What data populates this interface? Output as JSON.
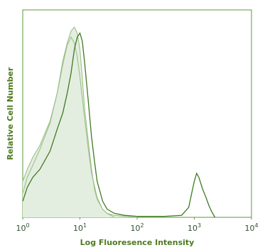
{
  "chart_data": {
    "type": "area",
    "xscale": "log",
    "xlim": [
      1,
      10000
    ],
    "ylim": [
      0,
      1
    ],
    "xlabel": "Log Fluoresence Intensity",
    "ylabel": "Relative Cell Number",
    "xticks": [
      {
        "base": "10",
        "exp": "0",
        "value": 1
      },
      {
        "base": "10",
        "exp": "1",
        "value": 10
      },
      {
        "base": "10",
        "exp": "2",
        "value": 100
      },
      {
        "base": "10",
        "exp": "3",
        "value": 1000
      },
      {
        "base": "10",
        "exp": "4",
        "value": 10000
      }
    ],
    "colors": {
      "frame": "#5a9a3a",
      "filled_series_line": "#9dbf8a",
      "filled_series_fill": "#e4eee0",
      "stained_series_line": "#3f7a22",
      "axis_text": "#2f4f2f",
      "title_text": "#4d7a1e"
    },
    "series": [
      {
        "role": "filled-control",
        "points": [
          [
            1.0,
            0.18
          ],
          [
            1.2,
            0.24
          ],
          [
            1.5,
            0.3
          ],
          [
            2.0,
            0.36
          ],
          [
            3.0,
            0.48
          ],
          [
            4.0,
            0.62
          ],
          [
            5.0,
            0.78
          ],
          [
            6.0,
            0.87
          ],
          [
            7.0,
            0.93
          ],
          [
            8.0,
            0.95
          ],
          [
            9.0,
            0.92
          ],
          [
            10.0,
            0.84
          ],
          [
            11.0,
            0.7
          ],
          [
            12.0,
            0.55
          ],
          [
            14.0,
            0.38
          ],
          [
            16.0,
            0.24
          ],
          [
            18.0,
            0.14
          ],
          [
            20.0,
            0.09
          ],
          [
            25.0,
            0.04
          ],
          [
            30.0,
            0.02
          ],
          [
            40.0,
            0.01
          ],
          [
            60.0,
            0.005
          ],
          [
            100.0,
            0.0
          ]
        ]
      },
      {
        "role": "unstained-outline",
        "points": [
          [
            1.0,
            0.12
          ],
          [
            1.2,
            0.2
          ],
          [
            1.5,
            0.26
          ],
          [
            2.0,
            0.34
          ],
          [
            3.0,
            0.47
          ],
          [
            4.0,
            0.62
          ],
          [
            5.0,
            0.76
          ],
          [
            6.0,
            0.86
          ],
          [
            7.0,
            0.9
          ],
          [
            8.0,
            0.87
          ],
          [
            9.0,
            0.8
          ],
          [
            10.0,
            0.7
          ],
          [
            12.0,
            0.5
          ],
          [
            14.0,
            0.34
          ],
          [
            16.0,
            0.22
          ],
          [
            20.0,
            0.1
          ],
          [
            25.0,
            0.04
          ],
          [
            30.0,
            0.02
          ],
          [
            40.0,
            0.0
          ]
        ]
      },
      {
        "role": "stained",
        "points": [
          [
            1.0,
            0.08
          ],
          [
            1.2,
            0.15
          ],
          [
            1.5,
            0.2
          ],
          [
            2.0,
            0.24
          ],
          [
            3.0,
            0.33
          ],
          [
            4.0,
            0.44
          ],
          [
            5.0,
            0.52
          ],
          [
            6.0,
            0.62
          ],
          [
            7.0,
            0.72
          ],
          [
            8.0,
            0.84
          ],
          [
            9.0,
            0.9
          ],
          [
            10.0,
            0.92
          ],
          [
            11.0,
            0.88
          ],
          [
            12.0,
            0.78
          ],
          [
            14.0,
            0.58
          ],
          [
            16.0,
            0.4
          ],
          [
            18.0,
            0.28
          ],
          [
            20.0,
            0.18
          ],
          [
            25.0,
            0.08
          ],
          [
            30.0,
            0.04
          ],
          [
            40.0,
            0.02
          ],
          [
            60.0,
            0.01
          ],
          [
            100.0,
            0.005
          ],
          [
            300.0,
            0.005
          ],
          [
            600.0,
            0.01
          ],
          [
            800.0,
            0.05
          ],
          [
            900.0,
            0.12
          ],
          [
            1000.0,
            0.18
          ],
          [
            1100.0,
            0.22
          ],
          [
            1200.0,
            0.2
          ],
          [
            1400.0,
            0.14
          ],
          [
            1600.0,
            0.1
          ],
          [
            1800.0,
            0.06
          ],
          [
            2000.0,
            0.03
          ],
          [
            2300.0,
            0.0
          ]
        ]
      }
    ]
  }
}
